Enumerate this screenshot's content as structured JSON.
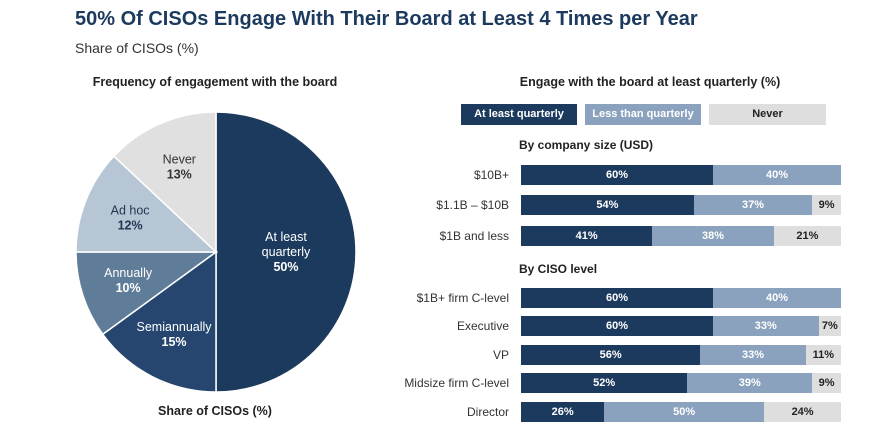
{
  "header": {
    "title": "50% Of CISOs Engage With Their Board at Least 4 Times per Year",
    "subtitle": "Share of CISOs (%)"
  },
  "colors": {
    "at_least_quarterly": "#1c3a5e",
    "less_than_quarterly": "#8aa2bd",
    "never": "#dedede",
    "pie_semiannually": "#26466f",
    "pie_annually": "#5f7c98",
    "pie_adhoc": "#b7c6d5",
    "pie_never": "#e0e0e0"
  },
  "chart_data": [
    {
      "type": "pie",
      "title": "Frequency of engagement with the board",
      "footer": "Share of CISOs (%)",
      "slices": [
        {
          "label": "At least quarterly",
          "value": 50,
          "value_label": "50%",
          "label_lines": [
            "At least",
            "quarterly"
          ]
        },
        {
          "label": "Semiannually",
          "value": 15,
          "value_label": "15%",
          "label_lines": [
            "Semiannually"
          ]
        },
        {
          "label": "Annually",
          "value": 10,
          "value_label": "10%",
          "label_lines": [
            "Annually"
          ]
        },
        {
          "label": "Ad hoc",
          "value": 12,
          "value_label": "12%",
          "label_lines": [
            "Ad hoc"
          ]
        },
        {
          "label": "Never",
          "value": 13,
          "value_label": "13%",
          "label_lines": [
            "Never"
          ]
        }
      ]
    },
    {
      "type": "bar",
      "orientation": "horizontal",
      "stacked": true,
      "title": "Engage with the board at least quarterly (%)",
      "legend": [
        "At least quarterly",
        "Less than quarterly",
        "Never"
      ],
      "groups": [
        {
          "title": "By company size (USD)",
          "categories": [
            "$10B+",
            "$1.1B – $10B",
            "$1B and less"
          ],
          "series": [
            {
              "name": "At least quarterly",
              "values": [
                60,
                54,
                41
              ],
              "labels": [
                "60%",
                "54%",
                "41%"
              ]
            },
            {
              "name": "Less than quarterly",
              "values": [
                40,
                37,
                38
              ],
              "labels": [
                "40%",
                "37%",
                "38%"
              ]
            },
            {
              "name": "Never",
              "values": [
                0,
                9,
                21
              ],
              "labels": [
                "",
                "9%",
                "21%"
              ]
            }
          ]
        },
        {
          "title": "By CISO level",
          "categories": [
            "$1B+ firm C-level",
            "Executive",
            "VP",
            "Midsize firm C-level",
            "Director"
          ],
          "series": [
            {
              "name": "At least quarterly",
              "values": [
                60,
                60,
                56,
                52,
                26
              ],
              "labels": [
                "60%",
                "60%",
                "56%",
                "52%",
                "26%"
              ]
            },
            {
              "name": "Less than quarterly",
              "values": [
                40,
                33,
                33,
                39,
                50
              ],
              "labels": [
                "40%",
                "33%",
                "33%",
                "39%",
                "50%"
              ]
            },
            {
              "name": "Never",
              "values": [
                0,
                7,
                11,
                9,
                24
              ],
              "labels": [
                "",
                "7%",
                "11%",
                "9%",
                "24%"
              ]
            }
          ]
        }
      ]
    }
  ]
}
